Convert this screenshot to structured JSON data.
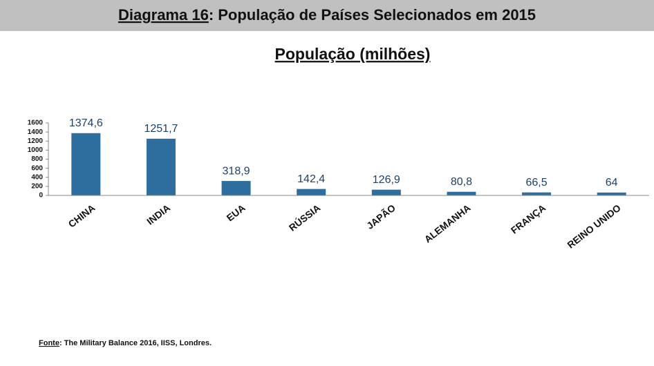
{
  "chart_data": {
    "type": "bar",
    "figure_label": "Diagrama 16",
    "figure_title": ": População de Países Selecionados em 2015",
    "title": "População (milhões)",
    "categories": [
      "CHINA",
      "INDIA",
      "EUA",
      "RÚSSIA",
      "JAPÃO",
      "ALEMANHA",
      "FRANÇA",
      "REINO UNIDO"
    ],
    "values": [
      1374.6,
      1251.7,
      318.9,
      142.4,
      126.9,
      80.8,
      66.5,
      64
    ],
    "value_labels": [
      "1374,6",
      "1251,7",
      "318,9",
      "142,4",
      "126,9",
      "80,8",
      "66,5",
      "64"
    ],
    "color": "#2e6e9e",
    "ylim": [
      0,
      1600
    ],
    "yticks": [
      0,
      200,
      400,
      600,
      800,
      1000,
      1200,
      1400,
      1600
    ],
    "source_label": "Fonte",
    "source_text": ": The Military Balance 2016, IISS, Londres."
  }
}
